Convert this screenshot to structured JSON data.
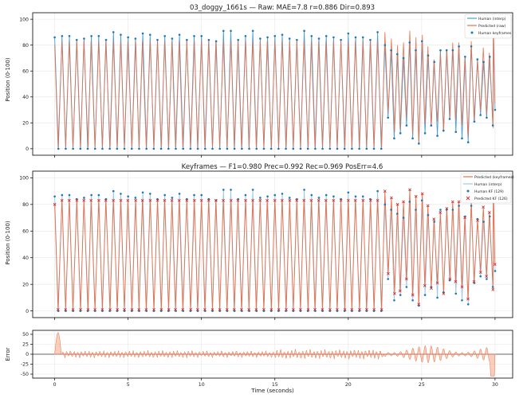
{
  "colors": {
    "human": "#4a9fd8",
    "predicted": "#e8704a",
    "human_kf": "#1f77b4",
    "predicted_kf": "#d62728",
    "error_fill": "#f4a582",
    "error_line": "#e8704a"
  },
  "chart_data": [
    {
      "type": "line",
      "title": "03_doggy_1661s  —  Raw: MAE=7.8  r=0.886  Dir=0.893",
      "xlabel": "",
      "ylabel": "Position (0-100)",
      "xlim": [
        -1.5,
        31.2
      ],
      "ylim": [
        -5,
        105
      ],
      "yticks": [
        0,
        20,
        40,
        60,
        80,
        100
      ],
      "xticks": [
        0,
        5,
        10,
        15,
        20,
        25,
        30
      ],
      "grid": true,
      "legend_position": "top-right",
      "series": [
        {
          "name": "Human (interp)",
          "kind": "line"
        },
        {
          "name": "Predicted (raw)",
          "kind": "line"
        },
        {
          "name": "Human keyframes",
          "kind": "scatter"
        }
      ],
      "regimes": [
        {
          "x_start": 0.0,
          "x_end": 22.4,
          "cycle_s": 0.5,
          "low": 0,
          "high": 85
        },
        {
          "x_start": 22.4,
          "x_end": 30.0,
          "cycle_s": 0.42,
          "low": 10,
          "high": 78
        }
      ]
    },
    {
      "type": "line",
      "title": "Keyframes  —  F1=0.980  Prec=0.992  Rec=0.969  PosErr=4.6",
      "xlabel": "",
      "ylabel": "Position (0-100)",
      "xlim": [
        -1.5,
        31.2
      ],
      "ylim": [
        -5,
        105
      ],
      "yticks": [
        0,
        20,
        40,
        60,
        80,
        100
      ],
      "xticks": [
        0,
        5,
        10,
        15,
        20,
        25,
        30
      ],
      "grid": true,
      "legend_position": "top-right",
      "series": [
        {
          "name": "Predicted (keyframes)",
          "kind": "line"
        },
        {
          "name": "Human (interp)",
          "kind": "line"
        },
        {
          "name": "Human KF (129)",
          "kind": "scatter"
        },
        {
          "name": "Predicted KF (126)",
          "kind": "scatter"
        }
      ]
    },
    {
      "type": "area",
      "title": "",
      "xlabel": "Time (seconds)",
      "ylabel": "Error",
      "xlim": [
        -1.5,
        31.2
      ],
      "ylim": [
        -60,
        60
      ],
      "yticks": [
        -50,
        -25,
        0,
        25,
        50
      ],
      "xticks": [
        0,
        5,
        10,
        15,
        20,
        25,
        30
      ],
      "grid": true,
      "series": [
        {
          "name": "Error",
          "kind": "area"
        }
      ]
    }
  ]
}
